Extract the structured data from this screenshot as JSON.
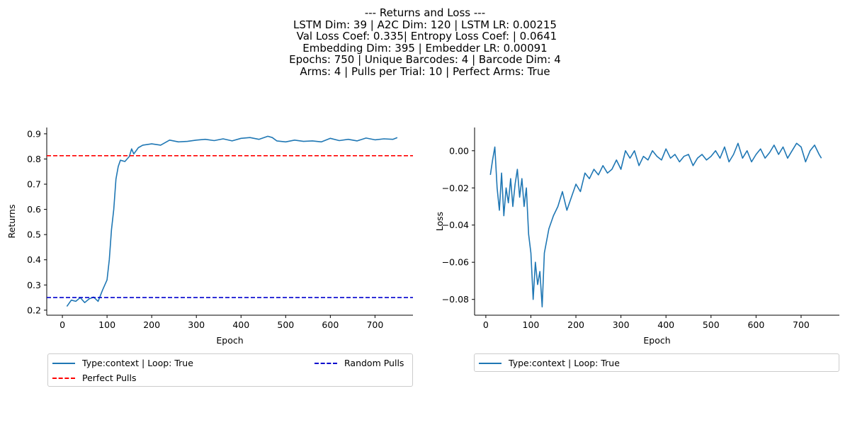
{
  "title_lines": [
    "--- Returns and Loss ---",
    "LSTM Dim: 39 | A2C Dim: 120 | LSTM LR: 0.00215",
    " Val Loss Coef: 0.335| Entropy Loss Coef: | 0.0641",
    "Embedding Dim: 395 | Embedder LR: 0.00091",
    "Epochs: 750 | Unique Barcodes: 4 | Barcode Dim: 4",
    "Arms: 4 | Pulls per Trial: 10 | Perfect Arms: True"
  ],
  "colors": {
    "series": "#1f77b4",
    "perfect": "#ff0000",
    "random": "#0000cd"
  },
  "chart_data": [
    {
      "type": "line",
      "xlabel": "Epoch",
      "ylabel": "Returns",
      "xlim": [
        -35,
        785
      ],
      "ylim": [
        0.18,
        0.925
      ],
      "xticks": [
        0,
        100,
        200,
        300,
        400,
        500,
        600,
        700
      ],
      "yticks": [
        0.2,
        0.3,
        0.4,
        0.5,
        0.6,
        0.7,
        0.8,
        0.9
      ],
      "grid": false,
      "legend_position": "below",
      "series": [
        {
          "name": "Type:context | Loop: True",
          "style": "solid",
          "x": [
            10,
            20,
            30,
            40,
            50,
            60,
            70,
            80,
            90,
            100,
            105,
            110,
            115,
            120,
            125,
            130,
            140,
            150,
            155,
            160,
            170,
            180,
            200,
            220,
            240,
            260,
            280,
            300,
            320,
            340,
            360,
            380,
            400,
            420,
            440,
            460,
            470,
            480,
            500,
            520,
            540,
            560,
            580,
            600,
            620,
            640,
            660,
            680,
            700,
            720,
            740,
            750
          ],
          "y": [
            0.215,
            0.24,
            0.235,
            0.25,
            0.23,
            0.245,
            0.252,
            0.235,
            0.28,
            0.32,
            0.4,
            0.52,
            0.6,
            0.72,
            0.77,
            0.795,
            0.79,
            0.81,
            0.84,
            0.82,
            0.845,
            0.855,
            0.86,
            0.855,
            0.875,
            0.868,
            0.87,
            0.875,
            0.878,
            0.873,
            0.88,
            0.872,
            0.882,
            0.885,
            0.878,
            0.89,
            0.885,
            0.872,
            0.868,
            0.875,
            0.87,
            0.872,
            0.868,
            0.882,
            0.873,
            0.878,
            0.872,
            0.883,
            0.876,
            0.88,
            0.878,
            0.885
          ]
        },
        {
          "name": "Perfect Pulls",
          "style": "dashed",
          "hline": 0.813
        },
        {
          "name": "Random Pulls",
          "style": "dashed",
          "hline": 0.25
        }
      ]
    },
    {
      "type": "line",
      "xlabel": "Epoch",
      "ylabel": "Loss",
      "xlim": [
        -25,
        785
      ],
      "ylim": [
        -0.0885,
        0.0125
      ],
      "xticks": [
        0,
        100,
        200,
        300,
        400,
        500,
        600,
        700
      ],
      "yticks": [
        -0.08,
        -0.06,
        -0.04,
        -0.02,
        0.0
      ],
      "ytick_labels": [
        "−0.08",
        "−0.06",
        "−0.04",
        "−0.02",
        "0.00"
      ],
      "grid": false,
      "legend_position": "below",
      "series": [
        {
          "name": "Type:context | Loop: True",
          "style": "solid",
          "x": [
            10,
            15,
            20,
            25,
            30,
            35,
            40,
            45,
            50,
            55,
            60,
            65,
            70,
            75,
            80,
            85,
            90,
            95,
            100,
            105,
            110,
            115,
            120,
            125,
            130,
            140,
            150,
            160,
            170,
            180,
            190,
            200,
            210,
            220,
            230,
            240,
            250,
            260,
            270,
            280,
            290,
            300,
            310,
            320,
            330,
            340,
            350,
            360,
            370,
            380,
            390,
            400,
            410,
            420,
            430,
            440,
            450,
            460,
            470,
            480,
            490,
            500,
            510,
            520,
            530,
            540,
            550,
            560,
            570,
            580,
            590,
            600,
            610,
            620,
            630,
            640,
            650,
            660,
            670,
            680,
            690,
            700,
            710,
            720,
            730,
            740,
            745
          ],
          "y": [
            -0.013,
            -0.005,
            0.002,
            -0.02,
            -0.032,
            -0.012,
            -0.035,
            -0.02,
            -0.028,
            -0.015,
            -0.03,
            -0.018,
            -0.01,
            -0.025,
            -0.015,
            -0.03,
            -0.02,
            -0.045,
            -0.055,
            -0.08,
            -0.06,
            -0.072,
            -0.065,
            -0.084,
            -0.055,
            -0.042,
            -0.035,
            -0.03,
            -0.022,
            -0.032,
            -0.025,
            -0.018,
            -0.022,
            -0.012,
            -0.015,
            -0.01,
            -0.013,
            -0.008,
            -0.012,
            -0.01,
            -0.005,
            -0.01,
            0.0,
            -0.004,
            0.0,
            -0.008,
            -0.003,
            -0.005,
            0.0,
            -0.003,
            -0.005,
            0.001,
            -0.004,
            -0.002,
            -0.006,
            -0.003,
            -0.002,
            -0.008,
            -0.004,
            -0.002,
            -0.005,
            -0.003,
            0.0,
            -0.004,
            0.002,
            -0.006,
            -0.002,
            0.004,
            -0.004,
            0.0,
            -0.006,
            -0.002,
            0.001,
            -0.004,
            -0.001,
            0.003,
            -0.002,
            0.002,
            -0.004,
            0.0,
            0.004,
            0.002,
            -0.006,
            0.0,
            0.003,
            -0.002,
            -0.004
          ]
        }
      ]
    }
  ],
  "legend_left": {
    "items": [
      "Type:context | Loop: True",
      "Random Pulls",
      "Perfect Pulls"
    ]
  },
  "legend_right": {
    "items": [
      "Type:context | Loop: True"
    ]
  }
}
